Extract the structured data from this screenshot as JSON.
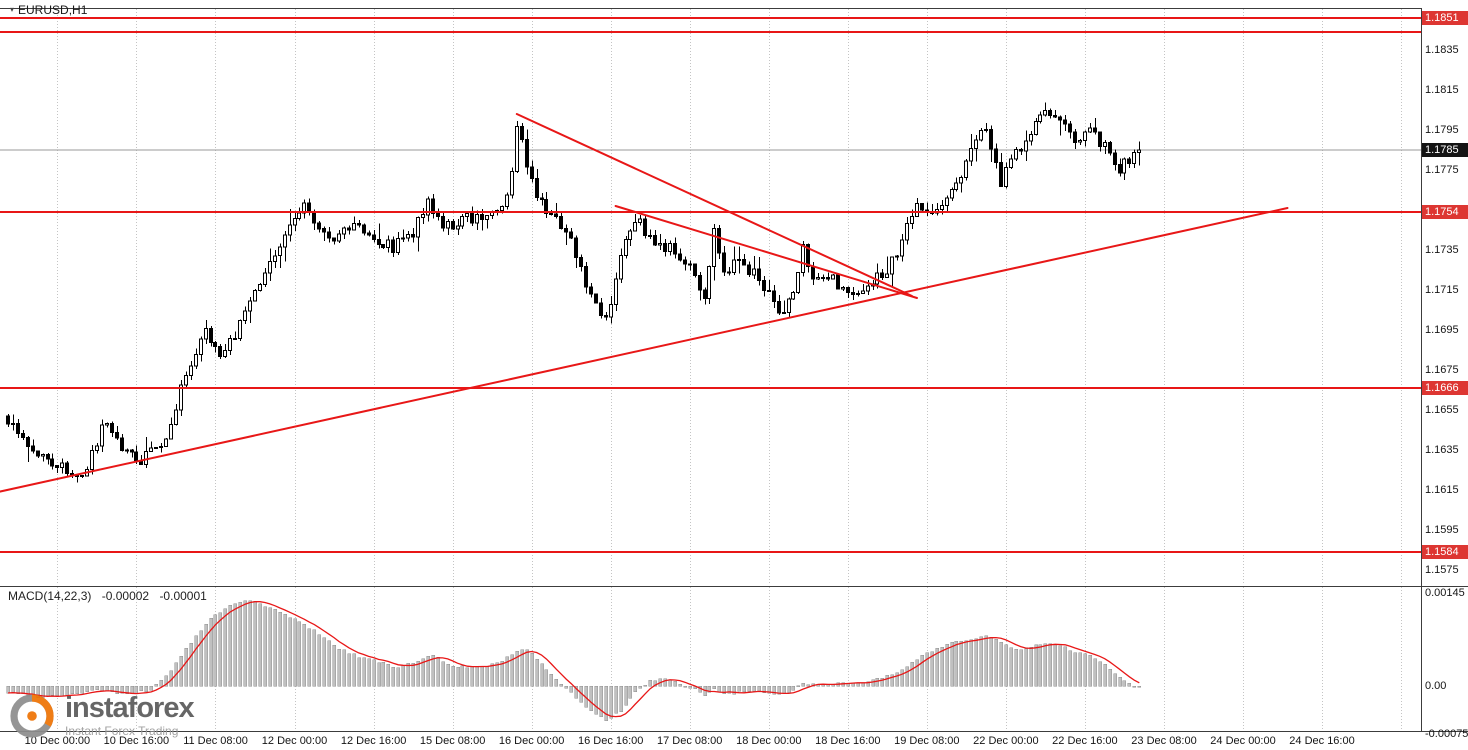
{
  "window": {
    "symbol_period": "EURUSD,H1"
  },
  "watermark": {
    "brand": "instaforex",
    "tagline": "Instant Forex Trading"
  },
  "colors": {
    "background": "#ffffff",
    "grid": "#c4c4c4",
    "candle": "#000000",
    "bull_body": "#ffffff",
    "level_line": "#e81717",
    "trend_line": "#e81717",
    "current_price_line": "#9a9a9a",
    "badge_red_bg": "#dd3632",
    "badge_black_bg": "#141414",
    "badge_text": "#ffffff",
    "axis_text": "#141414",
    "macd_bar": "#c0c0c0",
    "macd_bar_edge": "#8f8f8f",
    "macd_signal": "#e81717",
    "frame": "#3c3c3c",
    "watermark_orange": "#ee7203",
    "watermark_gray": "#8d8d8d",
    "brand_text": "#5a5a5a",
    "tagline_text": "#9b9b9b"
  },
  "chart_data": {
    "type": "candlestick",
    "symbol": "EURUSD",
    "timeframe": "H1",
    "title": "EURUSD,H1",
    "candle_count": 230,
    "current_price": 1.1785,
    "current_price_label": "1.1785",
    "price_view_top": 1.1856,
    "price_view_bottom": 1.15675,
    "y_ticks": [
      "1.1835",
      "1.1815",
      "1.1795",
      "1.1775",
      "1.1735",
      "1.1715",
      "1.1695",
      "1.1675",
      "1.1655",
      "1.1635",
      "1.1615",
      "1.1595",
      "1.1575"
    ],
    "x_labels": [
      {
        "idx": 10,
        "text": "10 Dec 00:00"
      },
      {
        "idx": 26,
        "text": "10 Dec 16:00"
      },
      {
        "idx": 42,
        "text": "11 Dec 08:00"
      },
      {
        "idx": 58,
        "text": "12 Dec 00:00"
      },
      {
        "idx": 74,
        "text": "12 Dec 16:00"
      },
      {
        "idx": 90,
        "text": "15 Dec 08:00"
      },
      {
        "idx": 106,
        "text": "16 Dec 00:00"
      },
      {
        "idx": 122,
        "text": "16 Dec 16:00"
      },
      {
        "idx": 138,
        "text": "17 Dec 08:00"
      },
      {
        "idx": 154,
        "text": "18 Dec 00:00"
      },
      {
        "idx": 170,
        "text": "18 Dec 16:00"
      },
      {
        "idx": 186,
        "text": "19 Dec 08:00"
      },
      {
        "idx": 202,
        "text": "22 Dec 00:00"
      },
      {
        "idx": 218,
        "text": "22 Dec 16:00"
      },
      {
        "idx": 234,
        "text": "23 Dec 08:00"
      },
      {
        "idx": 250,
        "text": "24 Dec 00:00"
      },
      {
        "idx": 266,
        "text": "24 Dec 16:00"
      }
    ],
    "grid": {
      "step_candles": 16,
      "first_idx": 10,
      "last_idx": 282
    },
    "horizontal_levels": [
      {
        "price": 1.1851,
        "label": "1.1851"
      },
      {
        "price": 1.1844,
        "label": null
      },
      {
        "price": 1.1754,
        "label": "1.1754"
      },
      {
        "price": 1.1666,
        "label": "1.1666"
      },
      {
        "price": 1.1584,
        "label": "1.1584"
      }
    ],
    "trendlines": [
      {
        "from_idx": 103,
        "from_price": 1.1803,
        "to_idx": 183,
        "to_price": 1.1712
      },
      {
        "from_idx": 123,
        "from_price": 1.1757,
        "to_idx": 184,
        "to_price": 1.1711
      },
      {
        "from_idx": -2,
        "from_price": 1.1614,
        "to_idx": 259,
        "to_price": 1.1756
      }
    ],
    "close_keyframes": [
      [
        0,
        1.1648
      ],
      [
        4,
        1.1638
      ],
      [
        8,
        1.1628
      ],
      [
        12,
        1.1625
      ],
      [
        15,
        1.1622
      ],
      [
        18,
        1.164
      ],
      [
        20,
        1.165
      ],
      [
        22,
        1.164
      ],
      [
        26,
        1.1628
      ],
      [
        29,
        1.1634
      ],
      [
        32,
        1.1642
      ],
      [
        36,
        1.1672
      ],
      [
        40,
        1.1694
      ],
      [
        43,
        1.1684
      ],
      [
        46,
        1.1692
      ],
      [
        49,
        1.1712
      ],
      [
        52,
        1.1724
      ],
      [
        55,
        1.1739
      ],
      [
        58,
        1.175
      ],
      [
        60,
        1.1758
      ],
      [
        63,
        1.1746
      ],
      [
        66,
        1.1738
      ],
      [
        70,
        1.1748
      ],
      [
        74,
        1.1742
      ],
      [
        78,
        1.1736
      ],
      [
        82,
        1.1744
      ],
      [
        85,
        1.1759
      ],
      [
        88,
        1.1746
      ],
      [
        92,
        1.175
      ],
      [
        96,
        1.1752
      ],
      [
        100,
        1.1757
      ],
      [
        102,
        1.1772
      ],
      [
        103,
        1.1797
      ],
      [
        105,
        1.1779
      ],
      [
        107,
        1.1761
      ],
      [
        110,
        1.1752
      ],
      [
        113,
        1.1746
      ],
      [
        116,
        1.1726
      ],
      [
        119,
        1.1706
      ],
      [
        121,
        1.17
      ],
      [
        124,
        1.1731
      ],
      [
        127,
        1.1751
      ],
      [
        130,
        1.1741
      ],
      [
        134,
        1.1736
      ],
      [
        138,
        1.1729
      ],
      [
        141,
        1.1709
      ],
      [
        143,
        1.1746
      ],
      [
        145,
        1.1723
      ],
      [
        148,
        1.1729
      ],
      [
        152,
        1.1721
      ],
      [
        156,
        1.1703
      ],
      [
        159,
        1.1713
      ],
      [
        161,
        1.1739
      ],
      [
        163,
        1.1719
      ],
      [
        166,
        1.1723
      ],
      [
        170,
        1.1712
      ],
      [
        174,
        1.1719
      ],
      [
        178,
        1.1723
      ],
      [
        181,
        1.1741
      ],
      [
        184,
        1.1757
      ],
      [
        187,
        1.1752
      ],
      [
        190,
        1.1762
      ],
      [
        193,
        1.1773
      ],
      [
        196,
        1.1789
      ],
      [
        198,
        1.1797
      ],
      [
        201,
        1.1769
      ],
      [
        204,
        1.1783
      ],
      [
        207,
        1.1793
      ],
      [
        210,
        1.1805
      ],
      [
        213,
        1.1798
      ],
      [
        216,
        1.179
      ],
      [
        219,
        1.1795
      ],
      [
        222,
        1.1786
      ],
      [
        225,
        1.1775
      ],
      [
        227,
        1.1781
      ],
      [
        229,
        1.1785
      ]
    ],
    "macd": {
      "name": "MACD(14,22,3)",
      "value_main_label": "-0.00002",
      "value_signal_label": "-0.00001",
      "last_values": [
        -2e-05,
        -1e-05
      ],
      "axis_labels": [
        {
          "text": "0.00145",
          "value": 0.00145
        },
        {
          "text": "0.00",
          "value": 0
        },
        {
          "text": "-0.00075",
          "value": -0.00075
        }
      ],
      "keyframes": [
        [
          0,
          -0.0001
        ],
        [
          6,
          -0.00016
        ],
        [
          12,
          -0.00014
        ],
        [
          18,
          -6e-05
        ],
        [
          24,
          -0.00014
        ],
        [
          29,
          -6e-05
        ],
        [
          33,
          0.00025
        ],
        [
          37,
          0.00068
        ],
        [
          41,
          0.00105
        ],
        [
          45,
          0.00125
        ],
        [
          48,
          0.00135
        ],
        [
          51,
          0.00128
        ],
        [
          55,
          0.00115
        ],
        [
          59,
          0.001
        ],
        [
          63,
          0.00082
        ],
        [
          67,
          0.00058
        ],
        [
          71,
          0.00046
        ],
        [
          75,
          0.00038
        ],
        [
          79,
          0.00028
        ],
        [
          83,
          0.0004
        ],
        [
          86,
          0.00048
        ],
        [
          89,
          0.00034
        ],
        [
          93,
          0.00029
        ],
        [
          97,
          0.0003
        ],
        [
          101,
          0.00044
        ],
        [
          104,
          0.00058
        ],
        [
          106,
          0.00052
        ],
        [
          109,
          0.00026
        ],
        [
          112,
          4e-05
        ],
        [
          115,
          -0.00018
        ],
        [
          118,
          -0.0004
        ],
        [
          121,
          -0.00053
        ],
        [
          124,
          -0.0004
        ],
        [
          127,
          -0.0001
        ],
        [
          130,
          8e-05
        ],
        [
          133,
          0.0001
        ],
        [
          136,
          3e-05
        ],
        [
          139,
          -6e-05
        ],
        [
          141,
          -0.00014
        ],
        [
          143,
          -6e-05
        ],
        [
          146,
          -0.00012
        ],
        [
          150,
          -8e-05
        ],
        [
          154,
          -0.00013
        ],
        [
          158,
          -9e-05
        ],
        [
          161,
          4e-05
        ],
        [
          165,
          2e-05
        ],
        [
          169,
          5e-05
        ],
        [
          173,
          7e-05
        ],
        [
          177,
          0.00012
        ],
        [
          181,
          0.00024
        ],
        [
          185,
          0.00048
        ],
        [
          189,
          0.00062
        ],
        [
          192,
          0.0007
        ],
        [
          195,
          0.00072
        ],
        [
          198,
          0.00078
        ],
        [
          201,
          0.00068
        ],
        [
          204,
          0.00056
        ],
        [
          207,
          0.00061
        ],
        [
          210,
          0.00066
        ],
        [
          213,
          0.00062
        ],
        [
          216,
          0.00054
        ],
        [
          219,
          0.00047
        ],
        [
          222,
          0.00034
        ],
        [
          225,
          0.00014
        ],
        [
          227,
          4e-05
        ],
        [
          229,
          -2e-05
        ]
      ]
    }
  }
}
